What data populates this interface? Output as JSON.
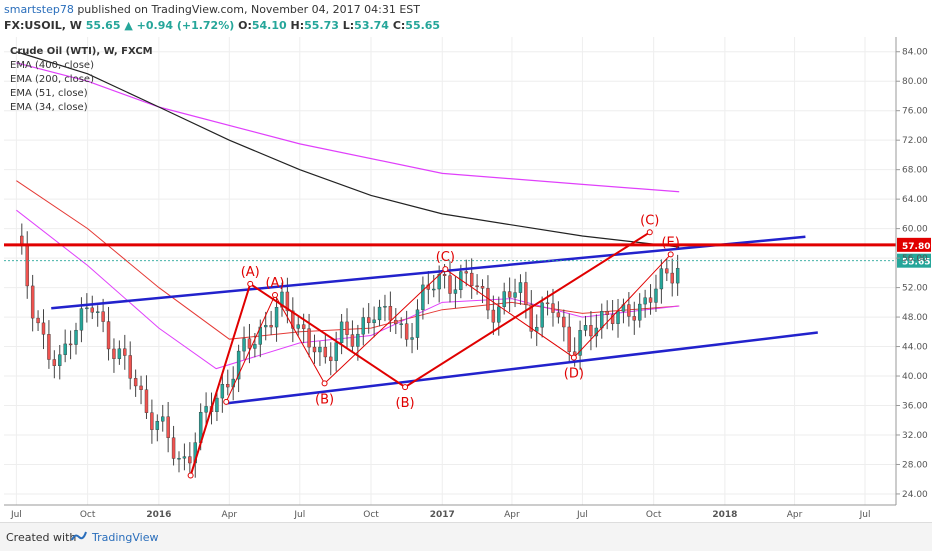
{
  "header": {
    "author": "smartstep78",
    "published": "published on TradingView.com, November 04, 2017 04:31 EST",
    "symbol": "FX:USOIL, W",
    "last": "55.65",
    "change": "+0.94 (+1.72%)",
    "open_label": "O:",
    "open": "54.10",
    "high_label": "H:",
    "high": "55.73",
    "low_label": "L:",
    "low": "53.74",
    "close_label": "C:",
    "close": "55.65"
  },
  "legend": {
    "title": "Crude Oil (WTI), W, FXCM",
    "items": [
      "EMA (400, close)",
      "EMA (200, close)",
      "EMA (51, close)",
      "EMA (34, close)"
    ]
  },
  "footer": {
    "created": "Created with",
    "brand": "TradingView"
  },
  "colors": {
    "up": "#26a69a",
    "down": "#ef5350",
    "ema400": "#222222",
    "ema200": "#e040fb",
    "ema51": "#e53935",
    "ema34": "#e040fb",
    "channel": "#2222cc",
    "resistance": "#e00000",
    "wave": "#e00000",
    "axis_text": "#555555"
  },
  "chart_data": {
    "type": "candlestick",
    "x_ticks": [
      "Jul",
      "Oct",
      "2016",
      "Apr",
      "Jul",
      "Oct",
      "2017",
      "Apr",
      "Jul",
      "Oct",
      "2018",
      "Apr",
      "Jul"
    ],
    "y_ticks": [
      "84.00",
      "80.00",
      "76.00",
      "72.00",
      "68.00",
      "64.00",
      "60.00",
      "56.00",
      "52.00",
      "48.00",
      "44.00",
      "40.00",
      "36.00",
      "32.00",
      "28.00",
      "24.00"
    ],
    "ylim": [
      22.5,
      86
    ],
    "resistance_level": "57.80",
    "last_price": "55.65",
    "close_series": [
      {
        "d": "2015-07-01",
        "v": 59.0
      },
      {
        "d": "2015-07-20",
        "v": 50.5
      },
      {
        "d": "2015-08-10",
        "v": 43.0
      },
      {
        "d": "2015-08-24",
        "v": 40.5
      },
      {
        "d": "2015-09-07",
        "v": 46.0
      },
      {
        "d": "2015-10-05",
        "v": 49.5
      },
      {
        "d": "2015-10-26",
        "v": 45.5
      },
      {
        "d": "2015-11-16",
        "v": 42.0
      },
      {
        "d": "2015-12-14",
        "v": 36.0
      },
      {
        "d": "2016-01-11",
        "v": 32.0
      },
      {
        "d": "2016-01-25",
        "v": 28.0
      },
      {
        "d": "2016-02-08",
        "v": 29.5
      },
      {
        "d": "2016-02-29",
        "v": 34.5
      },
      {
        "d": "2016-03-21",
        "v": 38.0
      },
      {
        "d": "2016-04-18",
        "v": 43.0
      },
      {
        "d": "2016-05-09",
        "v": 46.0
      },
      {
        "d": "2016-06-06",
        "v": 49.5
      },
      {
        "d": "2016-06-27",
        "v": 47.5
      },
      {
        "d": "2016-07-18",
        "v": 44.0
      },
      {
        "d": "2016-08-01",
        "v": 41.0
      },
      {
        "d": "2016-08-22",
        "v": 47.0
      },
      {
        "d": "2016-09-12",
        "v": 44.0
      },
      {
        "d": "2016-10-03",
        "v": 49.5
      },
      {
        "d": "2016-10-24",
        "v": 48.5
      },
      {
        "d": "2016-11-14",
        "v": 44.5
      },
      {
        "d": "2016-12-05",
        "v": 51.0
      },
      {
        "d": "2017-01-02",
        "v": 53.0
      },
      {
        "d": "2017-02-06",
        "v": 53.0
      },
      {
        "d": "2017-03-13",
        "v": 48.5
      },
      {
        "d": "2017-04-10",
        "v": 52.5
      },
      {
        "d": "2017-05-01",
        "v": 46.5
      },
      {
        "d": "2017-05-22",
        "v": 50.0
      },
      {
        "d": "2017-06-19",
        "v": 43.5
      },
      {
        "d": "2017-07-10",
        "v": 46.0
      },
      {
        "d": "2017-07-31",
        "v": 49.0
      },
      {
        "d": "2017-08-21",
        "v": 47.5
      },
      {
        "d": "2017-09-11",
        "v": 49.5
      },
      {
        "d": "2017-10-02",
        "v": 51.5
      },
      {
        "d": "2017-10-23",
        "v": 54.0
      },
      {
        "d": "2017-11-03",
        "v": 55.65
      }
    ],
    "ema400": [
      {
        "d": "2015-07-01",
        "v": 82.5
      },
      {
        "d": "2015-10-01",
        "v": 80.0
      },
      {
        "d": "2016-01-01",
        "v": 76.5
      },
      {
        "d": "2016-07-01",
        "v": 71.5
      },
      {
        "d": "2017-01-01",
        "v": 67.5
      },
      {
        "d": "2017-07-01",
        "v": 66.0
      },
      {
        "d": "2017-11-03",
        "v": 65.0
      }
    ],
    "ema200": [
      {
        "d": "2015-07-01",
        "v": 84.0
      },
      {
        "d": "2015-10-01",
        "v": 81.0
      },
      {
        "d": "2016-01-01",
        "v": 76.5
      },
      {
        "d": "2016-04-01",
        "v": 72.0
      },
      {
        "d": "2016-07-01",
        "v": 68.0
      },
      {
        "d": "2016-10-01",
        "v": 64.5
      },
      {
        "d": "2017-01-01",
        "v": 62.0
      },
      {
        "d": "2017-04-01",
        "v": 60.5
      },
      {
        "d": "2017-07-01",
        "v": 59.0
      },
      {
        "d": "2017-11-03",
        "v": 57.5
      }
    ],
    "ema51": [
      {
        "d": "2015-07-01",
        "v": 66.5
      },
      {
        "d": "2015-10-01",
        "v": 60.0
      },
      {
        "d": "2016-01-01",
        "v": 52.0
      },
      {
        "d": "2016-04-01",
        "v": 45.0
      },
      {
        "d": "2016-07-01",
        "v": 46.0
      },
      {
        "d": "2016-10-01",
        "v": 46.5
      },
      {
        "d": "2017-01-01",
        "v": 49.0
      },
      {
        "d": "2017-04-01",
        "v": 50.0
      },
      {
        "d": "2017-07-01",
        "v": 48.5
      },
      {
        "d": "2017-11-03",
        "v": 49.5
      }
    ],
    "ema34": [
      {
        "d": "2015-07-01",
        "v": 62.5
      },
      {
        "d": "2015-10-01",
        "v": 55.0
      },
      {
        "d": "2016-01-01",
        "v": 46.5
      },
      {
        "d": "2016-03-15",
        "v": 41.0
      },
      {
        "d": "2016-07-01",
        "v": 44.5
      },
      {
        "d": "2016-10-01",
        "v": 45.5
      },
      {
        "d": "2017-01-01",
        "v": 50.0
      },
      {
        "d": "2017-04-01",
        "v": 50.5
      },
      {
        "d": "2017-07-01",
        "v": 48.0
      },
      {
        "d": "2017-11-03",
        "v": 49.5
      }
    ],
    "channel_upper": [
      {
        "d": "2015-08-15",
        "v": 49.2
      },
      {
        "d": "2018-04-15",
        "v": 58.9
      }
    ],
    "channel_lower": [
      {
        "d": "2016-03-29",
        "v": 36.3
      },
      {
        "d": "2018-05-01",
        "v": 45.9
      }
    ],
    "wave_points": [
      {
        "label": "",
        "d": "2016-02-11",
        "v": 26.5
      },
      {
        "label": "(A)",
        "d": "2016-04-28",
        "v": 52.5
      },
      {
        "label": "(B)",
        "d": "2016-11-14",
        "v": 38.5
      },
      {
        "label": "(C)",
        "d": "2017-09-26",
        "v": 59.5
      }
    ],
    "inner_wave_points": [
      {
        "label": "",
        "d": "2016-03-28",
        "v": 36.5
      },
      {
        "label": "(A)",
        "d": "2016-05-30",
        "v": 51.0
      },
      {
        "label": "(B)",
        "d": "2016-08-02",
        "v": 39.0
      },
      {
        "label": "(C)",
        "d": "2017-01-05",
        "v": 54.5
      },
      {
        "label": "(D)",
        "d": "2017-06-20",
        "v": 42.5
      },
      {
        "label": "(E)",
        "d": "2017-10-23",
        "v": 56.5
      }
    ]
  }
}
